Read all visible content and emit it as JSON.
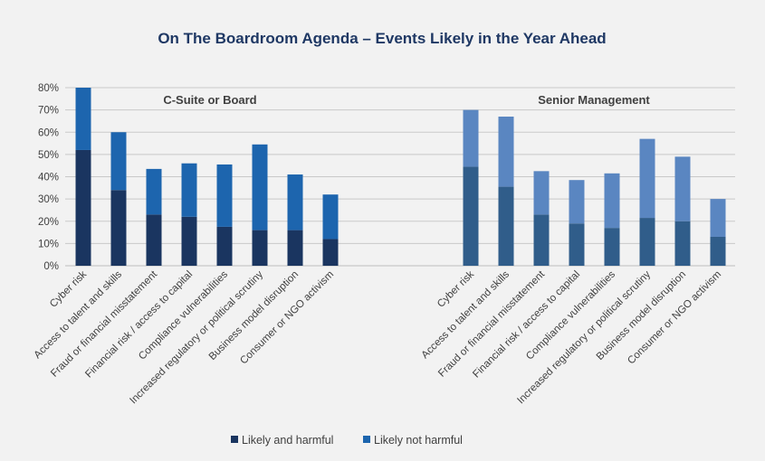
{
  "chart_data": {
    "type": "bar",
    "stacked": true,
    "title": "On The Boardroom Agenda – Events Likely in the Year Ahead",
    "ylim": [
      0,
      80
    ],
    "yticks": [
      "0%",
      "10%",
      "20%",
      "30%",
      "40%",
      "50%",
      "60%",
      "70%",
      "80%"
    ],
    "grid": true,
    "legend_position": "bottom",
    "legend": [
      {
        "name": "Likely and harmful"
      },
      {
        "name": "Likely not harmful"
      }
    ],
    "categories": [
      "Cyber risk",
      "Access to talent and skills",
      "Fraud or financial misstatement",
      "Financial risk / access to capital",
      "Compliance vulnerabilities",
      "Increased regulatory or political scrutiny",
      "Business model disruption",
      "Consumer or NGO activism"
    ],
    "panels": [
      {
        "label": "C-Suite or Board",
        "colors": [
          "#1a3560",
          "#1d65ae"
        ],
        "series": [
          {
            "name": "Likely and harmful",
            "values": [
              52,
              34,
              23,
              22,
              17.5,
              16,
              16,
              12
            ]
          },
          {
            "name": "Likely not harmful",
            "values": [
              28,
              26,
              20.5,
              24,
              28,
              38.5,
              25,
              20
            ]
          }
        ]
      },
      {
        "label": "Senior Management",
        "colors": [
          "#305d8a",
          "#5a86c1"
        ],
        "series": [
          {
            "name": "Likely and harmful",
            "values": [
              44.5,
              35.5,
              23,
              19,
              17,
              21.5,
              20,
              13
            ]
          },
          {
            "name": "Likely not harmful",
            "values": [
              25.5,
              31.5,
              19.5,
              19.5,
              24.5,
              35.5,
              29,
              17
            ]
          }
        ]
      }
    ],
    "legend_colors": [
      "#1a3560",
      "#1d65ae"
    ]
  }
}
